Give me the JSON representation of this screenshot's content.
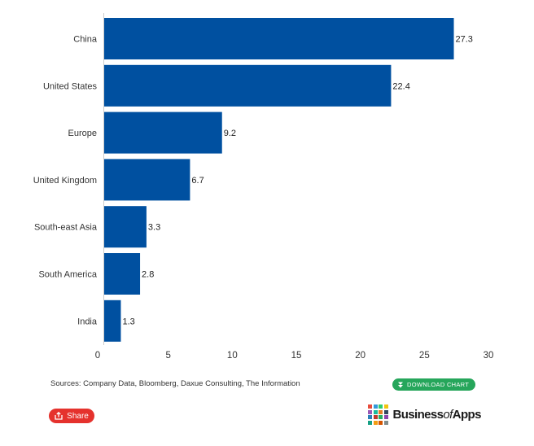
{
  "chart_data": {
    "type": "bar",
    "orientation": "horizontal",
    "categories": [
      "China",
      "United States",
      "Europe",
      "United Kingdom",
      "South-east Asia",
      "South America",
      "India"
    ],
    "values": [
      27.3,
      22.4,
      9.2,
      6.7,
      3.3,
      2.8,
      1.3
    ],
    "value_labels": [
      "27.3",
      "22.4",
      "9.2",
      "6.7",
      "3.3",
      "2.8",
      "1.3"
    ],
    "xlim": [
      0,
      30
    ],
    "x_ticks": [
      0,
      5,
      10,
      15,
      20,
      25,
      30
    ],
    "title": "",
    "xlabel": "",
    "ylabel": "",
    "grid": false,
    "bar_color": "#0050a0"
  },
  "sources": "Sources: Company Data, Bloomberg, Daxue Consulting, The Information",
  "download": {
    "label": "DOWNLOAD CHART",
    "icon": "download-icon",
    "color": "#26a65b"
  },
  "share": {
    "label": "Share",
    "icon": "share-icon",
    "color": "#e5322d"
  },
  "brand": {
    "name_part1": "Business",
    "name_part2": "of",
    "name_part3": "Apps",
    "grid_colors": [
      "#e74c3c",
      "#3498db",
      "#2ecc71",
      "#f1c40f",
      "#9b59b6",
      "#1abc9c",
      "#e67e22",
      "#34495e",
      "#2980b9",
      "#c0392b",
      "#27ae60",
      "#8e44ad",
      "#16a085",
      "#f39c12",
      "#d35400",
      "#7f8c8d"
    ]
  }
}
